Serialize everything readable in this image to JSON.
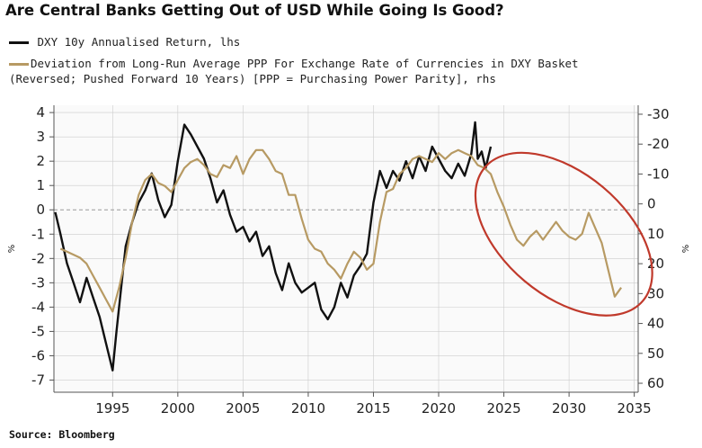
{
  "title": "Are Central Banks Getting Out of USD While Going Is Good?",
  "legend": {
    "series1": "DXY 10y Annualised Return, lhs",
    "series2_line1": "Deviation from Long-Run Average PPP For Exchange Rate of Currencies in DXY Basket",
    "series2_line2": "(Reversed; Pushed Forward 10 Years) [PPP = Purchasing Power Parity], rhs"
  },
  "source": "Source: Bloomberg",
  "colors": {
    "dxy": "#111111",
    "ppp": "#b79a63",
    "ellipse": "#c0392b",
    "grid": "#cccccc",
    "zero": "#999999"
  },
  "chart_data": {
    "type": "line",
    "title": "Are Central Banks Getting Out of USD While Going Is Good?",
    "xlim": [
      1990.5,
      2035.3
    ],
    "x_ticks": [
      1995,
      2000,
      2005,
      2010,
      2015,
      2020,
      2025,
      2030,
      2035
    ],
    "x_tick_labels": [
      "1995",
      "2000",
      "2005",
      "2010",
      "2015",
      "2020",
      "2025",
      "2030",
      "2035"
    ],
    "y_left": {
      "label": "%",
      "lim": [
        -7.5,
        4.3
      ],
      "ticks": [
        4,
        3,
        2,
        1,
        0,
        -1,
        -2,
        -3,
        -4,
        -5,
        -6,
        -7
      ],
      "tick_labels": [
        "4",
        "3",
        "2",
        "1",
        "0",
        "-1",
        "-2",
        "-3",
        "-4",
        "-5",
        "-6",
        "-7"
      ]
    },
    "y_right": {
      "label": "%",
      "reversed": true,
      "lim": [
        -33,
        63
      ],
      "ticks": [
        -30,
        -20,
        -10,
        0,
        10,
        20,
        30,
        40,
        50,
        60
      ],
      "tick_labels": [
        "-30",
        "-20",
        "-10",
        "0",
        "10",
        "20",
        "30",
        "40",
        "50",
        "60"
      ]
    },
    "series": [
      {
        "name": "DXY 10y Annualised Return, lhs",
        "axis": "left",
        "x": [
          1990.6,
          1991.0,
          1991.5,
          1992.0,
          1992.5,
          1993.0,
          1993.5,
          1994.0,
          1994.5,
          1995.0,
          1995.3,
          1995.7,
          1996.0,
          1996.5,
          1997.0,
          1997.5,
          1998.0,
          1998.5,
          1999.0,
          1999.5,
          2000.0,
          2000.5,
          2001.0,
          2001.5,
          2002.0,
          2002.5,
          2003.0,
          2003.5,
          2004.0,
          2004.5,
          2005.0,
          2005.5,
          2006.0,
          2006.5,
          2007.0,
          2007.5,
          2008.0,
          2008.5,
          2009.0,
          2009.5,
          2010.0,
          2010.5,
          2011.0,
          2011.5,
          2012.0,
          2012.5,
          2013.0,
          2013.5,
          2014.0,
          2014.5,
          2015.0,
          2015.5,
          2016.0,
          2016.5,
          2017.0,
          2017.5,
          2018.0,
          2018.5,
          2019.0,
          2019.5,
          2020.0,
          2020.5,
          2021.0,
          2021.5,
          2022.0,
          2022.5,
          2022.8,
          2023.0,
          2023.3,
          2023.6,
          2024.0
        ],
        "values": [
          -0.1,
          -1.0,
          -2.2,
          -3.0,
          -3.8,
          -2.8,
          -3.6,
          -4.4,
          -5.5,
          -6.6,
          -5.0,
          -3.0,
          -1.5,
          -0.5,
          0.3,
          0.8,
          1.5,
          0.4,
          -0.3,
          0.2,
          2.0,
          3.5,
          3.1,
          2.6,
          2.1,
          1.3,
          0.3,
          0.8,
          -0.2,
          -0.9,
          -0.7,
          -1.3,
          -0.9,
          -1.9,
          -1.5,
          -2.6,
          -3.3,
          -2.2,
          -3.0,
          -3.4,
          -3.2,
          -3.0,
          -4.1,
          -4.5,
          -4.0,
          -3.0,
          -3.6,
          -2.7,
          -2.3,
          -1.8,
          0.3,
          1.6,
          0.9,
          1.6,
          1.2,
          2.0,
          1.3,
          2.2,
          1.6,
          2.6,
          2.1,
          1.6,
          1.3,
          1.9,
          1.4,
          2.3,
          3.6,
          2.1,
          2.4,
          1.7,
          2.6
        ]
      },
      {
        "name": "Deviation from Long-Run Average PPP (Reversed; Pushed Forward 10 Years), rhs",
        "axis": "right",
        "x": [
          1991.0,
          1991.5,
          1992.0,
          1992.5,
          1993.0,
          1993.5,
          1994.0,
          1994.5,
          1995.0,
          1995.5,
          1996.0,
          1996.5,
          1997.0,
          1997.5,
          1998.0,
          1998.5,
          1999.0,
          1999.5,
          2000.0,
          2000.5,
          2001.0,
          2001.5,
          2002.0,
          2002.5,
          2003.0,
          2003.5,
          2004.0,
          2004.5,
          2005.0,
          2005.5,
          2006.0,
          2006.5,
          2007.0,
          2007.5,
          2008.0,
          2008.5,
          2009.0,
          2009.5,
          2010.0,
          2010.5,
          2011.0,
          2011.5,
          2012.0,
          2012.5,
          2013.0,
          2013.5,
          2014.0,
          2014.5,
          2015.0,
          2015.5,
          2016.0,
          2016.5,
          2017.0,
          2017.5,
          2018.0,
          2018.5,
          2019.0,
          2019.5,
          2020.0,
          2020.5,
          2021.0,
          2021.5,
          2022.0,
          2022.5,
          2023.0,
          2023.5,
          2024.0,
          2024.5,
          2025.0,
          2025.5,
          2026.0,
          2026.5,
          2027.0,
          2027.5,
          2028.0,
          2028.5,
          2029.0,
          2029.5,
          2030.0,
          2030.5,
          2031.0,
          2031.5,
          2032.0,
          2032.5,
          2033.0,
          2033.5,
          2034.0
        ],
        "values": [
          15,
          16,
          17,
          18,
          20,
          24,
          28,
          32,
          36,
          28,
          18,
          6,
          -3,
          -8,
          -10,
          -7,
          -6,
          -4,
          -8,
          -12,
          -14,
          -15,
          -13,
          -10,
          -9,
          -13,
          -12,
          -16,
          -10,
          -15,
          -18,
          -18,
          -15,
          -11,
          -10,
          -3,
          -3,
          5,
          12,
          15,
          16,
          20,
          22,
          25,
          20,
          16,
          18,
          22,
          20,
          6,
          -4,
          -5,
          -10,
          -12,
          -15,
          -16,
          -15,
          -14,
          -17,
          -15,
          -17,
          -18,
          -17,
          -16,
          -13,
          -12,
          -10,
          -4,
          1,
          7,
          12,
          14,
          11,
          9,
          12,
          9,
          6,
          9,
          11,
          12,
          10,
          3,
          8,
          13,
          22,
          31,
          28
        ]
      }
    ]
  }
}
